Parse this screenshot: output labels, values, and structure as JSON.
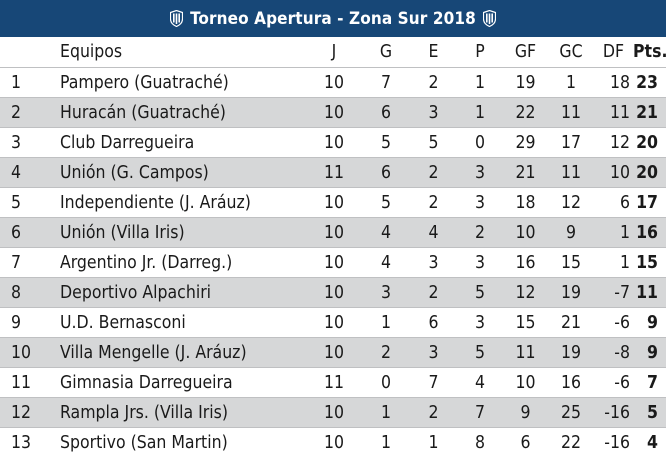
{
  "title": "Torneo Apertura - Zona Sur 2018",
  "icons": {
    "left": "club-crest-icon",
    "right": "club-crest-icon"
  },
  "colors": {
    "header_bg": "#174777",
    "header_text": "#ffffff",
    "row_alt": "#d6d7d8"
  },
  "headers": {
    "pos": "",
    "team": "Equipos",
    "j": "J",
    "g": "G",
    "e": "E",
    "p": "P",
    "gf": "GF",
    "gc": "GC",
    "df": "DF",
    "pts": "Pts."
  },
  "rows": [
    {
      "pos": "1",
      "team": "Pampero (Guatraché)",
      "j": "10",
      "g": "7",
      "e": "2",
      "p": "1",
      "gf": "19",
      "gc": "1",
      "df": "18",
      "pts": "23"
    },
    {
      "pos": "2",
      "team": "Huracán (Guatraché)",
      "j": "10",
      "g": "6",
      "e": "3",
      "p": "1",
      "gf": "22",
      "gc": "11",
      "df": "11",
      "pts": "21"
    },
    {
      "pos": "3",
      "team": "Club Darregueira",
      "j": "10",
      "g": "5",
      "e": "5",
      "p": "0",
      "gf": "29",
      "gc": "17",
      "df": "12",
      "pts": "20"
    },
    {
      "pos": "4",
      "team": "Unión (G. Campos)",
      "j": "11",
      "g": "6",
      "e": "2",
      "p": "3",
      "gf": "21",
      "gc": "11",
      "df": "10",
      "pts": "20"
    },
    {
      "pos": "5",
      "team": "Independiente (J. Aráuz)",
      "j": "10",
      "g": "5",
      "e": "2",
      "p": "3",
      "gf": "18",
      "gc": "12",
      "df": "6",
      "pts": "17"
    },
    {
      "pos": "6",
      "team": "Unión (Villa Iris)",
      "j": "10",
      "g": "4",
      "e": "4",
      "p": "2",
      "gf": "10",
      "gc": "9",
      "df": "1",
      "pts": "16"
    },
    {
      "pos": "7",
      "team": "Argentino Jr. (Darreg.)",
      "j": "10",
      "g": "4",
      "e": "3",
      "p": "3",
      "gf": "16",
      "gc": "15",
      "df": "1",
      "pts": "15"
    },
    {
      "pos": "8",
      "team": "Deportivo Alpachiri",
      "j": "10",
      "g": "3",
      "e": "2",
      "p": "5",
      "gf": "12",
      "gc": "19",
      "df": "-7",
      "pts": "11"
    },
    {
      "pos": "9",
      "team": "U.D. Bernasconi",
      "j": "10",
      "g": "1",
      "e": "6",
      "p": "3",
      "gf": "15",
      "gc": "21",
      "df": "-6",
      "pts": "9"
    },
    {
      "pos": "10",
      "team": "Villa Mengelle (J. Aráuz)",
      "j": "10",
      "g": "2",
      "e": "3",
      "p": "5",
      "gf": "11",
      "gc": "19",
      "df": "-8",
      "pts": "9"
    },
    {
      "pos": "11",
      "team": "Gimnasia Darregueira",
      "j": "11",
      "g": "0",
      "e": "7",
      "p": "4",
      "gf": "10",
      "gc": "16",
      "df": "-6",
      "pts": "7"
    },
    {
      "pos": "12",
      "team": "Rampla Jrs. (Villa Iris)",
      "j": "10",
      "g": "1",
      "e": "2",
      "p": "7",
      "gf": "9",
      "gc": "25",
      "df": "-16",
      "pts": "5"
    },
    {
      "pos": "13",
      "team": "Sportivo (San Martin)",
      "j": "10",
      "g": "1",
      "e": "1",
      "p": "8",
      "gf": "6",
      "gc": "22",
      "df": "-16",
      "pts": "4"
    }
  ]
}
